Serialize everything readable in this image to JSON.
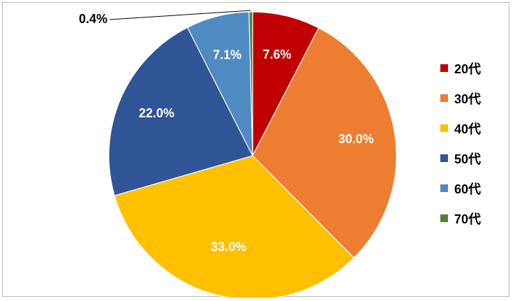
{
  "chart_data": {
    "type": "pie",
    "title": "",
    "categories": [
      "20代",
      "30代",
      "40代",
      "50代",
      "60代",
      "70代"
    ],
    "values": [
      7.6,
      30.0,
      33.0,
      22.0,
      7.1,
      0.4
    ],
    "labels": [
      "7.6%",
      "30.0%",
      "33.0%",
      "22.0%",
      "7.1%",
      "0.4%"
    ],
    "colors": [
      "#c00000",
      "#ed7d31",
      "#ffc000",
      "#2f5597",
      "#4f8bc2",
      "#548235"
    ],
    "start": "12 o'clock",
    "direction": "clockwise",
    "legend": "right",
    "legend_labels": [
      "20代",
      "30代",
      "40代",
      "50代",
      "60代",
      "70代"
    ]
  }
}
